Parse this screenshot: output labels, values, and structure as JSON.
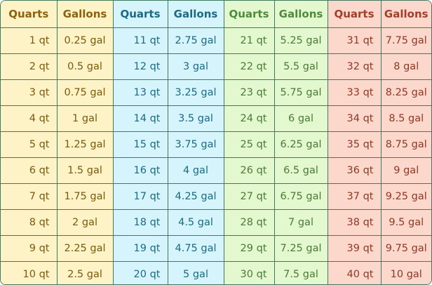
{
  "headers": [
    "Quarts",
    "Gallons",
    "Quarts",
    "Gallons",
    "Quarts",
    "Gallons",
    "Quarts",
    "Gallons"
  ],
  "colors": {
    "border": "#3f7a5f",
    "group1_bg": "#fdf3c6",
    "group2_bg": "#d6f4fb",
    "group3_bg": "#e4f8cf",
    "group4_bg": "#fcd8cc"
  },
  "rows": [
    [
      "1 qt",
      "0.25 gal",
      "11 qt",
      "2.75 gal",
      "21 qt",
      "5.25 gal",
      "31 qt",
      "7.75 gal"
    ],
    [
      "2 qt",
      "0.5 gal",
      "12 qt",
      "3 gal",
      "22 qt",
      "5.5 gal",
      "32 qt",
      "8 gal"
    ],
    [
      "3 qt",
      "0.75 gal",
      "13 qt",
      "3.25 gal",
      "23 qt",
      "5.75 gal",
      "33 qt",
      "8.25 gal"
    ],
    [
      "4 qt",
      "1 gal",
      "14 qt",
      "3.5 gal",
      "24 qt",
      "6 gal",
      "34 qt",
      "8.5 gal"
    ],
    [
      "5 qt",
      "1.25 gal",
      "15 qt",
      "3.75 gal",
      "25 qt",
      "6.25 gal",
      "35 qt",
      "8.75 gal"
    ],
    [
      "6 qt",
      "1.5 gal",
      "16 qt",
      "4 gal",
      "26 qt",
      "6.5 gal",
      "36 qt",
      "9 gal"
    ],
    [
      "7 qt",
      "1.75 gal",
      "17 qt",
      "4.25 gal",
      "27 qt",
      "6.75 gal",
      "37 qt",
      "9.25 gal"
    ],
    [
      "8 qt",
      "2 gal",
      "18 qt",
      "4.5 gal",
      "28 qt",
      "7 gal",
      "38 qt",
      "9.5 gal"
    ],
    [
      "9 qt",
      "2.25 gal",
      "19 qt",
      "4.75 gal",
      "29 qt",
      "7.25 gal",
      "39 qt",
      "9.75 gal"
    ],
    [
      "10 qt",
      "2.5 gal",
      "20 qt",
      "5 gal",
      "30 qt",
      "7.5 gal",
      "40 qt",
      "10 gal"
    ]
  ]
}
